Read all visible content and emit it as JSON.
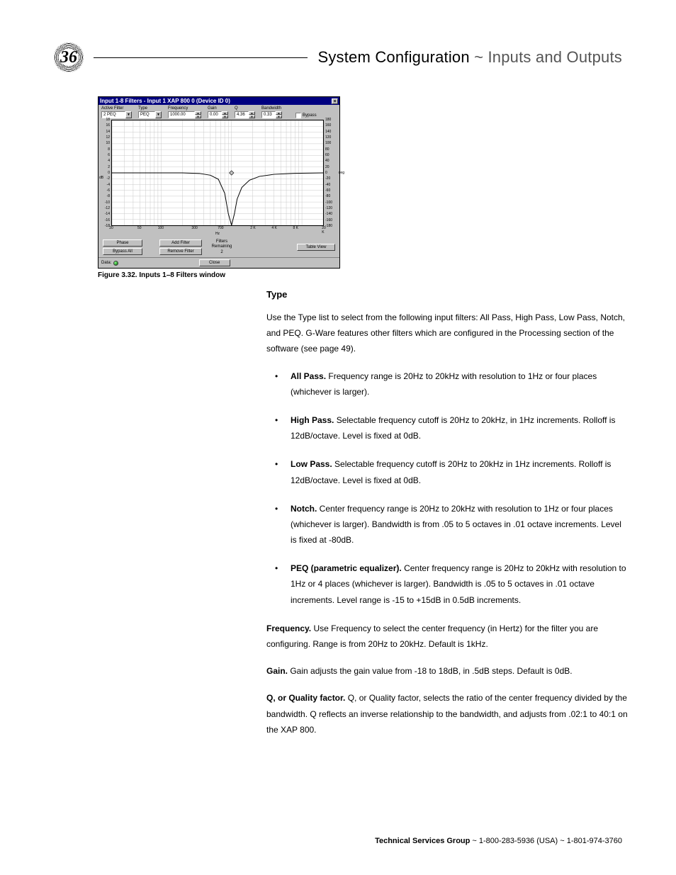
{
  "page_number": "36",
  "header": {
    "left": "System Configuration",
    "sep": "~",
    "right": "Inputs and Outputs"
  },
  "figure": {
    "caption": "Figure 3.32. Inputs 1–8 Filters window",
    "titlebar": "Input 1-8 Filters - Input 1  XAP 800 0 (Device ID 0)",
    "controls": {
      "active_filter": {
        "label": "Active Filter",
        "value": "2 PEQ"
      },
      "type": {
        "label": "Type",
        "value": "PEQ"
      },
      "frequency": {
        "label": "Frequency",
        "value": "1000.00"
      },
      "gain": {
        "label": "Gain",
        "value": "0.00"
      },
      "q": {
        "label": "Q",
        "value": "4.36"
      },
      "bandwidth": {
        "label": "Bandwidth",
        "value": "0.33"
      },
      "bypass_label": "Bypass"
    },
    "chart": {
      "type": "log-frequency-response",
      "background_color": "#ffffff",
      "grid_color": "#c8c8c8",
      "curve_color": "#000000",
      "y_left": {
        "label": "dB",
        "min": -18,
        "max": 18,
        "ticks": [
          18,
          16,
          14,
          12,
          10,
          8,
          6,
          4,
          2,
          0,
          -2,
          -4,
          -6,
          -8,
          -10,
          -12,
          -14,
          -16,
          -18
        ]
      },
      "y_right": {
        "label": "deg",
        "min": -180,
        "max": 180,
        "ticks": [
          180,
          160,
          140,
          120,
          100,
          80,
          60,
          40,
          20,
          0,
          -20,
          -40,
          -60,
          -80,
          -100,
          -120,
          -140,
          -160,
          -180
        ]
      },
      "x": {
        "label": "Hz",
        "min": 20,
        "max": 20000,
        "ticks": [
          20,
          50,
          100,
          300,
          700,
          2000,
          4000,
          8000,
          20000
        ],
        "tick_labels": [
          "20",
          "50",
          "100",
          "300",
          "700",
          "2 K",
          "4 K",
          "8 K",
          "20 K"
        ]
      },
      "phase_curve": [
        [
          20,
          0
        ],
        [
          50,
          0
        ],
        [
          100,
          0
        ],
        [
          200,
          0
        ],
        [
          350,
          -0.2
        ],
        [
          500,
          -0.8
        ],
        [
          650,
          -2.2
        ],
        [
          800,
          -7
        ],
        [
          900,
          -14
        ],
        [
          1000,
          -18
        ],
        [
          1100,
          -14
        ],
        [
          1200,
          -9
        ],
        [
          1400,
          -5
        ],
        [
          1800,
          -2.5
        ],
        [
          2500,
          -1.2
        ],
        [
          4000,
          -0.5
        ],
        [
          8000,
          -0.15
        ],
        [
          20000,
          0
        ]
      ],
      "node_hz": 1000,
      "node_db": 0
    },
    "buttons": {
      "phase": "Phase",
      "bypass_all": "Bypass All",
      "add_filter": "Add Filter",
      "remove_filter": "Remove Filter",
      "filters_remaining_label": "Filters\nRemaining",
      "filters_remaining_value": "2",
      "table_view": "Table View",
      "close": "Close"
    },
    "status": {
      "label": "Data:"
    }
  },
  "section_heading": "Type",
  "intro": "Use the Type list to select from the following input filters: All Pass, High Pass, Low Pass, Notch, and PEQ. G-Ware features other filters which are configured in the Processing section of the software (see page 49).",
  "filters": [
    {
      "name": "All Pass.",
      "text": " Frequency range is 20Hz to 20kHz with resolution to 1Hz or four places (whichever is larger)."
    },
    {
      "name": "High Pass.",
      "text": " Selectable frequency cutoff is 20Hz to 20kHz, in 1Hz increments. Rolloff is 12dB/octave. Level is fixed at 0dB."
    },
    {
      "name": "Low Pass.",
      "text": " Selectable frequency cutoff is 20Hz to 20kHz in 1Hz increments. Rolloff is 12dB/octave. Level is fixed at 0dB."
    },
    {
      "name": "Notch.",
      "text": " Center frequency range is 20Hz to 20kHz with resolution to 1Hz or four places (whichever is larger). Bandwidth is from .05 to 5 octaves in .01 octave increments. Level is fixed at -80dB."
    },
    {
      "name": "PEQ (parametric equalizer).",
      "text": " Center frequency range is 20Hz to 20kHz with resolution to 1Hz or 4 places (whichever is larger). Bandwidth is .05 to 5 octaves in .01 octave increments. Level range is -15 to +15dB in 0.5dB increments."
    }
  ],
  "defs": [
    {
      "name": "Frequency.",
      "text": " Use Frequency to select the center frequency (in Hertz) for the filter you are configuring. Range is from 20Hz to 20kHz. Default is 1kHz."
    },
    {
      "name": "Gain.",
      "text": " Gain adjusts the gain value from -18 to 18dB, in .5dB steps. Default is 0dB."
    },
    {
      "name": "Q, or Quality factor.",
      "text": " Q, or Quality factor, selects the ratio of the center frequency divided by the bandwidth. Q reflects an inverse relationship to the bandwidth, and adjusts from .02:1 to 40:1 on the XAP 800."
    }
  ],
  "footer": {
    "group": "Technical Services Group",
    "rest": " ~ 1-800-283-5936 (USA) ~ 1-801-974-3760"
  }
}
